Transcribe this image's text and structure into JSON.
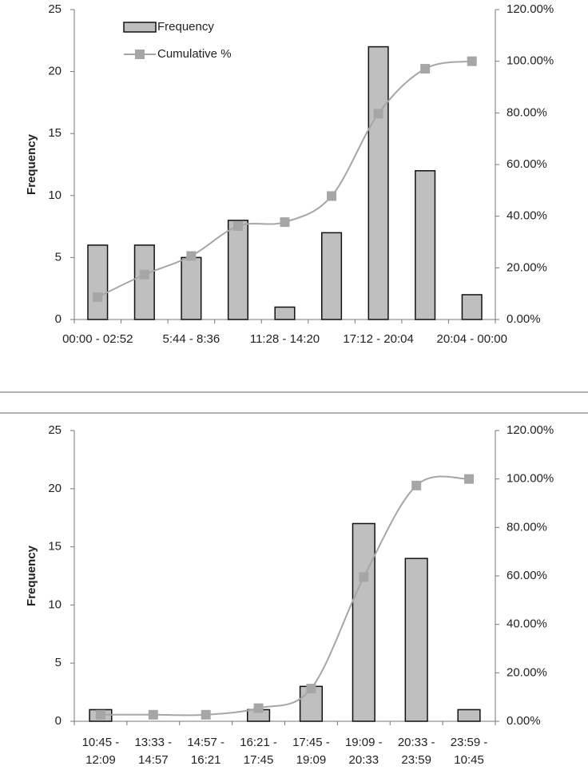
{
  "chart_data": [
    {
      "type": "pareto",
      "y_label": "Frequency",
      "categories": [
        "00:00 - 02:52",
        null,
        "5:44 - 8:36",
        null,
        "11:28 - 14:20",
        null,
        "17:12 - 20:04",
        null,
        "20:04 - 00:00"
      ],
      "series": [
        {
          "name": "Frequency",
          "color": "#bfbfbf",
          "values": [
            6,
            6,
            5,
            8,
            1,
            7,
            22,
            12,
            2
          ]
        },
        {
          "name": "Cumulative %",
          "color": "#a6a6a6",
          "axis": "y2",
          "values": [
            8.7,
            17.4,
            24.6,
            36.2,
            37.7,
            47.8,
            79.7,
            97.1,
            100
          ]
        }
      ],
      "ylim": [
        0,
        25
      ],
      "yticks": [
        0,
        5,
        10,
        15,
        20,
        25
      ],
      "y2lim": [
        0,
        120
      ],
      "y2ticks": [
        {
          "value": 0,
          "label": "0.00%"
        },
        {
          "value": 20,
          "label": "20.00%"
        },
        {
          "value": 40,
          "label": "40.00%"
        },
        {
          "value": 60,
          "label": "60.00%"
        },
        {
          "value": 80,
          "label": "80.00%"
        },
        {
          "value": 100,
          "label": "100.00%"
        },
        {
          "value": 120,
          "label": "120.00%"
        }
      ],
      "legend": "top-left"
    },
    {
      "type": "pareto",
      "y_label": "Frequency",
      "categories": [
        [
          "10:45 -",
          "12:09"
        ],
        [
          "13:33 -",
          "14:57"
        ],
        [
          "14:57 -",
          "16:21"
        ],
        [
          "16:21 -",
          "17:45"
        ],
        [
          "17:45 -",
          "19:09"
        ],
        [
          "19:09 -",
          "20:33"
        ],
        [
          "20:33 -",
          "23:59"
        ],
        [
          "23:59 -",
          "10:45"
        ]
      ],
      "series": [
        {
          "color": "#bfbfbf",
          "values": [
            1,
            0,
            0,
            1,
            3,
            17,
            14,
            1
          ]
        },
        {
          "color": "#a6a6a6",
          "axis": "y2",
          "values": [
            2.7,
            2.7,
            2.7,
            5.4,
            13.5,
            59.5,
            97.3,
            100
          ]
        }
      ],
      "ylim": [
        0,
        25
      ],
      "yticks": [
        0,
        5,
        10,
        15,
        20,
        25
      ],
      "y2lim": [
        0,
        120
      ],
      "y2ticks": [
        {
          "value": 0,
          "label": "0.00%"
        },
        {
          "value": 20,
          "label": "20.00%"
        },
        {
          "value": 40,
          "label": "40.00%"
        },
        {
          "value": 60,
          "label": "60.00%"
        },
        {
          "value": 80,
          "label": "80.00%"
        },
        {
          "value": 100,
          "label": "100.00%"
        },
        {
          "value": 120,
          "label": "120.00%"
        }
      ]
    }
  ]
}
